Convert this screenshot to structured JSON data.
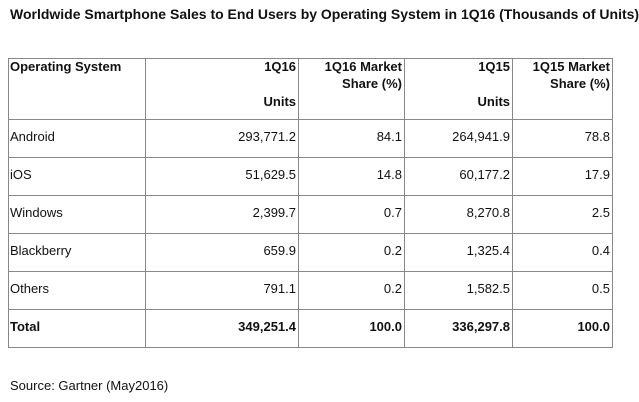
{
  "title": "Worldwide Smartphone Sales to End Users by Operating System in 1Q16 (Thousands of Units)",
  "table": {
    "headers": [
      {
        "line1": "Operating System",
        "line2": ""
      },
      {
        "line1": "1Q16",
        "line2": "Units"
      },
      {
        "line1": "1Q16 Market",
        "line2": "Share (%)"
      },
      {
        "line1": "1Q15",
        "line2": "Units"
      },
      {
        "line1": "1Q15 Market",
        "line2": "Share (%)"
      }
    ],
    "rows": [
      [
        "Android",
        "293,771.2",
        "84.1",
        "264,941.9",
        "78.8"
      ],
      [
        "iOS",
        "51,629.5",
        "14.8",
        "60,177.2",
        "17.9"
      ],
      [
        "Windows",
        "2,399.7",
        "0.7",
        "8,270.8",
        "2.5"
      ],
      [
        "Blackberry",
        "659.9",
        "0.2",
        "1,325.4",
        "0.4"
      ],
      [
        "Others",
        "791.1",
        "0.2",
        "1,582.5",
        "0.5"
      ]
    ],
    "total": [
      "Total",
      "349,251.4",
      "100.0",
      "336,297.8",
      "100.0"
    ]
  },
  "source": "Source: Gartner (May2016)"
}
